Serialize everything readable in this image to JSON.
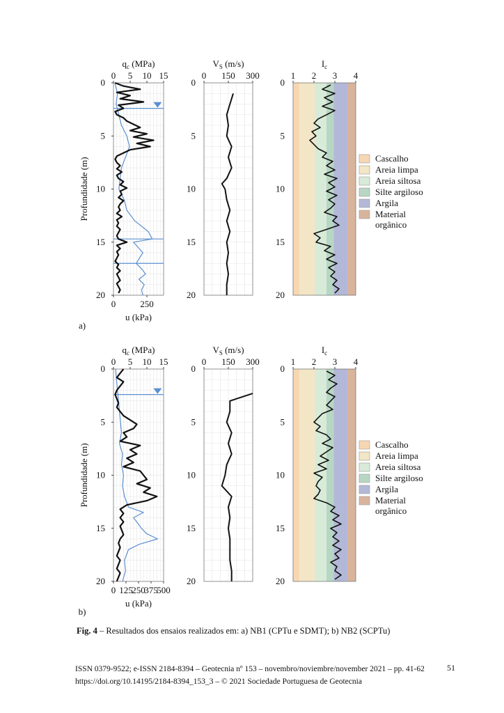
{
  "colors": {
    "black": "#111111",
    "pore_pressure": "#5b8fd0",
    "cascalho": "#f7d7b3",
    "areia_limpa": "#f2e6c6",
    "areia_siltosa": "#d8ebd8",
    "silte_argiloso": "#b8d6c4",
    "argila": "#b3b8d8",
    "material_organico": "#d9b49c"
  },
  "panels": [
    {
      "id": "a",
      "label": "a)",
      "qc_title_base": "q",
      "qc_title_sub": "c",
      "qc_title_unit": " (MPa)",
      "qc_ticks": [
        "0",
        "5",
        "10",
        "15"
      ],
      "u_title": "u (kPa)",
      "u_ticks": [
        "0",
        "250"
      ],
      "depth_label": "Profundidade (m)",
      "depth_ticks": [
        "0",
        "5",
        "10",
        "15",
        "20"
      ],
      "vs_title_base": "V",
      "vs_title_sub": "S",
      "vs_title_unit": " (m/s)",
      "vs_ticks": [
        "0",
        "150",
        "300"
      ],
      "ic_title_base": "I",
      "ic_title_sub": "c",
      "ic_ticks": [
        "1",
        "2",
        "3",
        "4"
      ]
    },
    {
      "id": "b",
      "label": "b)",
      "qc_title_base": "q",
      "qc_title_sub": "c",
      "qc_title_unit": " (MPa)",
      "qc_ticks": [
        "0",
        "5",
        "10",
        "15"
      ],
      "u_title": "u (kPa)",
      "u_ticks": [
        "0",
        "125",
        "250",
        "375",
        "500"
      ],
      "depth_label": "Profundidade (m)",
      "depth_ticks": [
        "0",
        "5",
        "10",
        "15",
        "20"
      ],
      "vs_title_base": "V",
      "vs_title_sub": "S",
      "vs_title_unit": " (m/s)",
      "vs_ticks": [
        "0",
        "150",
        "300"
      ],
      "ic_title_base": "I",
      "ic_title_sub": "c",
      "ic_ticks": [
        "1",
        "2",
        "3",
        "4"
      ]
    }
  ],
  "legend": [
    "Cascalho",
    "Areia limpa",
    "Areia siltosa",
    "Silte argiloso",
    "Argila",
    "Material orgânico"
  ],
  "caption": {
    "label": "Fig. 4",
    "text": " – Resultados dos ensaios realizados em: a) NB1 (CPTu e SDMT); b) NB2 (SCPTu)"
  },
  "footer": {
    "line1": "ISSN 0379-9522; e-ISSN 2184-8394 – Geotecnia nº 153 – novembro/noviembre/november 2021 – pp. 41-62",
    "line2": "https://doi.org/10.14195/2184-8394_153_3 – © 2021 Sociedade Portuguesa de Geotecnia",
    "page": "51"
  },
  "chart_data": [
    {
      "panel": "a",
      "type": "line",
      "title": "",
      "ylabel": "Profundidade (m)",
      "ylim": [
        0,
        20
      ],
      "y_inverted": true,
      "subplots": [
        {
          "name": "qc",
          "xlabel": "qc (MPa)",
          "xlim": [
            0,
            15
          ],
          "series": [
            {
              "name": "qc",
              "depth": [
                0,
                0.3,
                0.6,
                0.9,
                1.2,
                1.5,
                1.8,
                2.1,
                2.4,
                2.7,
                3.0,
                3.3,
                3.6,
                3.9,
                4.2,
                4.5,
                4.8,
                5.1,
                5.4,
                5.7,
                6.0,
                6.3,
                6.6,
                6.9,
                7.2,
                7.5,
                7.8,
                8.1,
                8.4,
                8.7,
                9.0,
                9.3,
                9.6,
                9.9,
                10.2,
                10.5,
                10.8,
                11.1,
                11.4,
                11.7,
                12.0,
                12.3,
                12.6,
                12.9,
                13.2,
                13.5,
                13.8,
                14.1,
                14.4,
                14.7,
                15.0,
                15.3,
                15.6,
                15.9,
                16.2,
                16.5,
                16.8,
                17.1,
                17.4,
                17.7,
                18.0,
                18.3,
                18.6,
                18.9,
                19.2,
                19.5,
                19.8
              ],
              "values": [
                0.5,
                3,
                8,
                1,
                5,
                2,
                9,
                1.5,
                3,
                0.5,
                1,
                3,
                4,
                6,
                8,
                5,
                10,
                6,
                12,
                7,
                11,
                5,
                3,
                1,
                0.5,
                1,
                2,
                1,
                2.5,
                1,
                1.5,
                3,
                2,
                4,
                2,
                2.5,
                1.5,
                3,
                2,
                1.5,
                2,
                1,
                2.5,
                1,
                1.5,
                1,
                2,
                1.5,
                1,
                1.5,
                4,
                1,
                2,
                1,
                1.5,
                1,
                0.5,
                1.5,
                1,
                2,
                1,
                1.5,
                2,
                1,
                1.5,
                2,
                1.5
              ]
            }
          ]
        },
        {
          "name": "u",
          "xlabel": "u (kPa)",
          "xlim": [
            0,
            375
          ],
          "series": [
            {
              "name": "u",
              "depth": [
                0,
                1,
                2,
                3,
                4,
                5,
                6,
                7,
                8,
                9,
                10,
                11,
                12,
                13,
                14,
                14.7,
                15,
                16,
                17,
                17.5,
                18,
                18.5,
                19,
                19.5,
                20
              ],
              "values": [
                10,
                30,
                20,
                40,
                60,
                100,
                120,
                90,
                60,
                50,
                40,
                80,
                100,
                160,
                260,
                290,
                150,
                220,
                170,
                210,
                240,
                190,
                230,
                210,
                220
              ]
            }
          ]
        },
        {
          "name": "Vs",
          "xlabel": "Vs (m/s)",
          "xlim": [
            0,
            300
          ],
          "series": [
            {
              "name": "Vs",
              "depth": [
                1,
                2,
                3,
                4,
                5,
                6,
                7,
                8,
                9,
                9.5,
                10,
                11,
                12,
                13,
                14,
                15,
                16,
                17,
                18,
                19,
                20
              ],
              "values": [
                180,
                160,
                140,
                150,
                140,
                170,
                150,
                170,
                140,
                110,
                130,
                140,
                160,
                140,
                160,
                140,
                150,
                140,
                150,
                140,
                140
              ]
            }
          ]
        },
        {
          "name": "Ic",
          "xlabel": "Ic",
          "xlim": [
            1,
            4
          ],
          "series": [
            {
              "name": "Ic",
              "depth": [
                0.2,
                0.6,
                1.0,
                1.4,
                1.8,
                2.2,
                2.6,
                3.0,
                3.4,
                3.8,
                4.2,
                4.6,
                5.0,
                5.4,
                5.8,
                6.2,
                6.6,
                7.0,
                7.4,
                7.8,
                8.2,
                8.6,
                9.0,
                9.4,
                9.8,
                10.2,
                10.6,
                11.0,
                11.4,
                11.8,
                12.2,
                12.6,
                13.0,
                13.4,
                13.8,
                14.2,
                14.6,
                15.0,
                15.4,
                15.8,
                16.2,
                16.6,
                17.0,
                17.4,
                17.8,
                18.2,
                18.6,
                19.0,
                19.4,
                19.8
              ],
              "values": [
                2.8,
                2.4,
                3.0,
                2.5,
                2.9,
                2.4,
                3.0,
                2.6,
                2.2,
                2.0,
                2.3,
                1.9,
                2.1,
                1.8,
                2.0,
                2.2,
                2.6,
                2.4,
                2.9,
                2.6,
                3.0,
                2.5,
                3.1,
                2.7,
                3.0,
                2.6,
                3.1,
                2.7,
                3.0,
                2.8,
                2.5,
                3.1,
                2.9,
                3.2,
                2.6,
                2.0,
                2.3,
                2.1,
                2.8,
                2.5,
                3.0,
                2.6,
                3.1,
                2.7,
                3.0,
                2.8,
                3.1,
                2.9,
                3.2,
                3.0
              ]
            }
          ]
        }
      ],
      "water_table_depth_m": 2.4,
      "horizontal_lines_depth_m": [
        2.4,
        14.7,
        17
      ]
    },
    {
      "panel": "b",
      "type": "line",
      "title": "",
      "ylabel": "Profundidade (m)",
      "ylim": [
        0,
        20
      ],
      "y_inverted": true,
      "subplots": [
        {
          "name": "qc",
          "xlabel": "qc (MPa)",
          "xlim": [
            0,
            15
          ],
          "series": [
            {
              "name": "qc",
              "depth": [
                0,
                0.4,
                0.8,
                1.2,
                1.6,
                2.0,
                2.4,
                2.8,
                3.2,
                3.6,
                4.0,
                4.4,
                4.8,
                5.2,
                5.6,
                6.0,
                6.4,
                6.8,
                7.2,
                7.6,
                8.0,
                8.4,
                8.8,
                9.2,
                9.6,
                10.0,
                10.4,
                10.8,
                11.2,
                11.6,
                12.0,
                12.4,
                12.8,
                13.2,
                13.6,
                14.0,
                14.4,
                14.8,
                15.2,
                15.6,
                16.0,
                16.4,
                16.8,
                17.2,
                17.6,
                18.0,
                18.4,
                18.8,
                19.2,
                19.6,
                20.0
              ],
              "values": [
                3,
                2,
                1,
                3,
                2,
                1,
                0.5,
                1,
                1.5,
                1,
                2,
                3,
                5,
                7,
                6,
                3,
                4,
                2,
                8,
                5,
                7,
                4,
                6,
                3,
                8,
                9,
                10,
                7,
                11,
                9,
                13,
                10,
                4,
                2,
                3,
                2,
                3,
                2,
                2.5,
                3,
                2,
                1.5,
                2,
                1.5,
                1,
                2,
                1.5,
                1,
                2,
                1.5,
                1
              ]
            }
          ]
        },
        {
          "name": "u",
          "xlabel": "u (kPa)",
          "xlim": [
            0,
            500
          ],
          "series": [
            {
              "name": "u",
              "depth": [
                0,
                1,
                2,
                3,
                4,
                5,
                6,
                7,
                8,
                9,
                10,
                11,
                12,
                13,
                13.5,
                14,
                14.5,
                15,
                15.5,
                16,
                16.5,
                17,
                18,
                19,
                20
              ],
              "values": [
                20,
                30,
                40,
                50,
                60,
                70,
                80,
                60,
                90,
                80,
                100,
                90,
                110,
                150,
                300,
                200,
                240,
                280,
                330,
                440,
                260,
                150,
                110,
                120,
                90
              ]
            }
          ]
        },
        {
          "name": "Vs",
          "xlabel": "Vs (m/s)",
          "xlim": [
            0,
            300
          ],
          "series": [
            {
              "name": "Vs",
              "depth": [
                2.3,
                3,
                4,
                5,
                6,
                7,
                8,
                9,
                10,
                11,
                12,
                13,
                14,
                15,
                16,
                17,
                18,
                19,
                20
              ],
              "values": [
                300,
                160,
                160,
                140,
                170,
                150,
                170,
                140,
                130,
                110,
                170,
                150,
                160,
                150,
                160,
                160,
                160,
                170,
                170
              ]
            }
          ]
        },
        {
          "name": "Ic",
          "xlabel": "Ic",
          "xlim": [
            1,
            4
          ],
          "series": [
            {
              "name": "Ic",
              "depth": [
                0.2,
                0.6,
                1.0,
                1.4,
                1.8,
                2.2,
                2.6,
                3.0,
                3.4,
                3.8,
                4.2,
                4.6,
                5.0,
                5.4,
                5.8,
                6.2,
                6.6,
                7.0,
                7.4,
                7.8,
                8.2,
                8.6,
                9.0,
                9.4,
                9.8,
                10.2,
                10.6,
                11.0,
                11.4,
                11.8,
                12.2,
                12.6,
                13.0,
                13.4,
                13.8,
                14.2,
                14.6,
                15.0,
                15.4,
                15.8,
                16.2,
                16.6,
                17.0,
                17.4,
                17.8,
                18.2,
                18.6,
                19.0,
                19.4,
                19.8
              ],
              "values": [
                2.6,
                3.0,
                2.7,
                3.1,
                2.8,
                2.6,
                3.0,
                2.8,
                2.6,
                2.9,
                2.4,
                2.2,
                2.0,
                2.3,
                2.1,
                2.6,
                2.8,
                2.4,
                2.9,
                2.6,
                2.3,
                2.7,
                2.2,
                2.6,
                2.0,
                2.4,
                2.2,
                2.1,
                2.3,
                2.2,
                2.0,
                2.6,
                3.0,
                2.8,
                3.2,
                2.9,
                3.3,
                2.8,
                3.1,
                2.9,
                3.2,
                2.9,
                3.3,
                3.0,
                3.2,
                2.8,
                3.1,
                3.0,
                3.3,
                3.0
              ]
            }
          ]
        }
      ],
      "water_table_depth_m": 2.4,
      "horizontal_lines_depth_m": [
        2.4
      ]
    }
  ]
}
